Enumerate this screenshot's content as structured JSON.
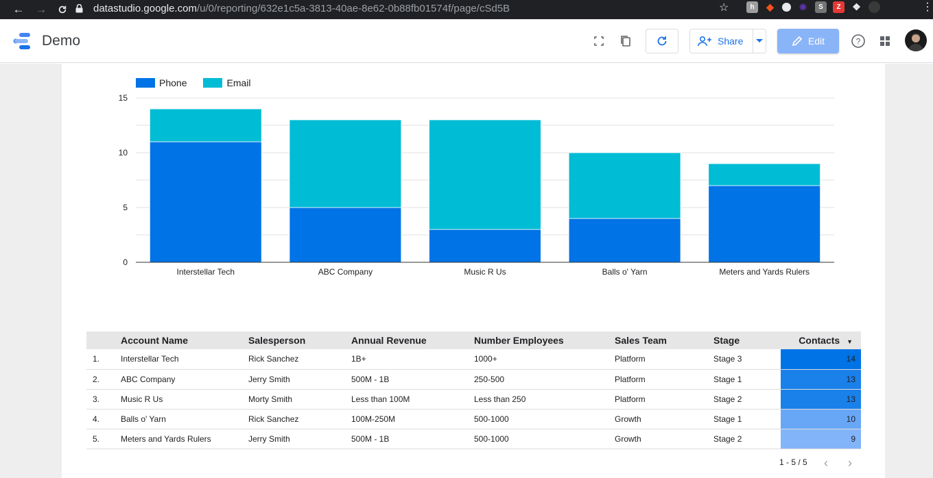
{
  "browser": {
    "url_host": "datastudio.google.com",
    "url_path": "/u/0/reporting/632e1c5a-3813-40ae-8e62-0b88fb01574f/page/cSd5B"
  },
  "header": {
    "title": "Demo",
    "share_label": "Share",
    "edit_label": "Edit"
  },
  "colors": {
    "phone": "#0073e6",
    "email": "#00bcd4",
    "edit_button": "#8ab4f8",
    "accent": "#1a73e8"
  },
  "chart_data": {
    "type": "bar",
    "stacked": true,
    "categories": [
      "Interstellar Tech",
      "ABC Company",
      "Music R Us",
      "Balls o' Yarn",
      "Meters and Yards Rulers"
    ],
    "series": [
      {
        "name": "Phone",
        "values": [
          11,
          5,
          3,
          4,
          7
        ]
      },
      {
        "name": "Email",
        "values": [
          3,
          8,
          10,
          6,
          2
        ]
      }
    ],
    "ylim": [
      0,
      15
    ],
    "yticks": [
      0,
      5,
      10,
      15
    ],
    "grid": true,
    "legend": "top-left"
  },
  "table": {
    "columns": [
      "Account Name",
      "Salesperson",
      "Annual Revenue",
      "Number Employees",
      "Sales Team",
      "Stage",
      "Contacts"
    ],
    "sort_indicator": "▼",
    "rows": [
      {
        "idx": "1.",
        "account": "Interstellar Tech",
        "salesperson": "Rick Sanchez",
        "revenue": "1B+",
        "employees": "1000+",
        "team": "Platform",
        "stage": "Stage 3",
        "contacts": 14
      },
      {
        "idx": "2.",
        "account": "ABC Company",
        "salesperson": "Jerry Smith",
        "revenue": "500M - 1B",
        "employees": "250-500",
        "team": "Platform",
        "stage": "Stage 1",
        "contacts": 13
      },
      {
        "idx": "3.",
        "account": "Music R Us",
        "salesperson": "Morty Smith",
        "revenue": "Less than 100M",
        "employees": "Less than 250",
        "team": "Platform",
        "stage": "Stage 2",
        "contacts": 13
      },
      {
        "idx": "4.",
        "account": "Balls o' Yarn",
        "salesperson": "Rick Sanchez",
        "revenue": "100M-250M",
        "employees": "500-1000",
        "team": "Growth",
        "stage": "Stage 1",
        "contacts": 10
      },
      {
        "idx": "5.",
        "account": "Meters and Yards Rulers",
        "salesperson": "Jerry Smith",
        "revenue": "500M - 1B",
        "employees": "500-1000",
        "team": "Growth",
        "stage": "Stage 2",
        "contacts": 9
      }
    ],
    "pagination": "1 - 5 / 5"
  }
}
